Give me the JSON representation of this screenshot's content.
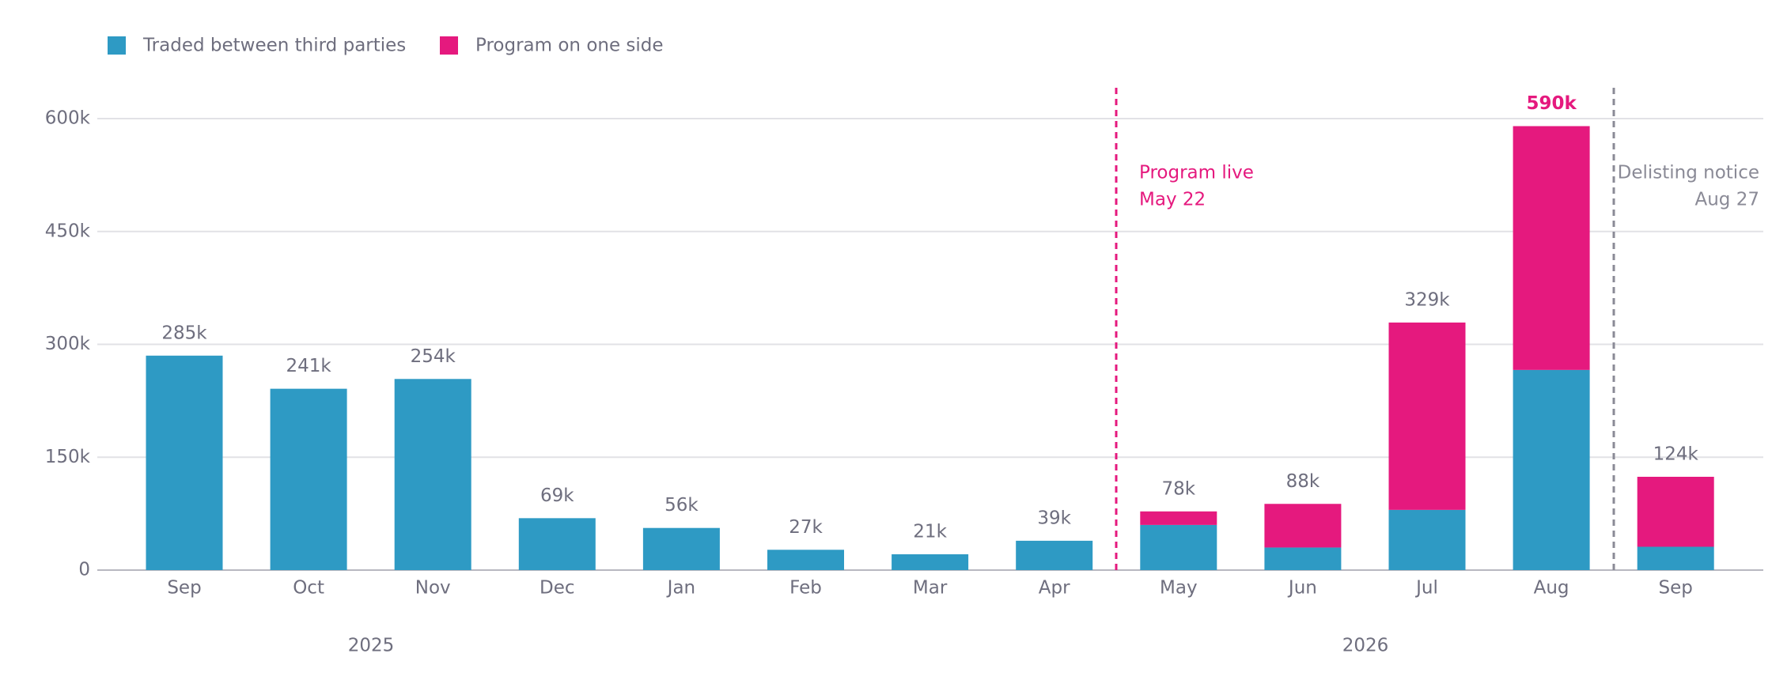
{
  "chart_data": {
    "type": "stacked_bar",
    "categories": [
      "Sep",
      "Oct",
      "Nov",
      "Dec",
      "Jan",
      "Feb",
      "Mar",
      "Apr",
      "May",
      "Jun",
      "Jul",
      "Aug",
      "Sep"
    ],
    "groups": [
      "2025",
      "2026"
    ],
    "series": [
      {
        "name": "Traded between third parties",
        "color": "#2e9ac4",
        "values": [
          285000,
          241000,
          254000,
          69000,
          56000,
          27000,
          21000,
          39000,
          60000,
          30000,
          80000,
          266000,
          31000
        ]
      },
      {
        "name": "Program on one side",
        "color": "#e5197e",
        "values": [
          0,
          0,
          0,
          0,
          0,
          0,
          0,
          0,
          18000,
          58000,
          249000,
          324000,
          93000
        ]
      }
    ],
    "totals": {
      "values": [
        285000,
        241000,
        254000,
        69000,
        56000,
        27000,
        21000,
        39000,
        78000,
        88000,
        329000,
        590000,
        124000
      ],
      "value_labels": [
        "285k",
        "241k",
        "254k",
        "69k",
        "56k",
        "27k",
        "21k",
        "39k",
        "78k",
        "88k",
        "329k",
        "590k",
        "124k"
      ]
    },
    "annotations": [
      {
        "lines": [
          "Program live",
          "May 22"
        ],
        "color": "#e5197e"
      },
      {
        "lines": [
          "Delisting notice",
          "Aug 27"
        ],
        "color": "#8a8a96"
      }
    ],
    "ylim": [
      0,
      600000
    ],
    "yticks": [
      0,
      {
        "value": 150000,
        "label": "150k"
      },
      {
        "value": 300000,
        "label": "300k"
      },
      {
        "value": 450000,
        "label": "450k"
      },
      {
        "value": 600000,
        "label": "600k"
      }
    ],
    "grid": true,
    "legend": "top-left"
  }
}
